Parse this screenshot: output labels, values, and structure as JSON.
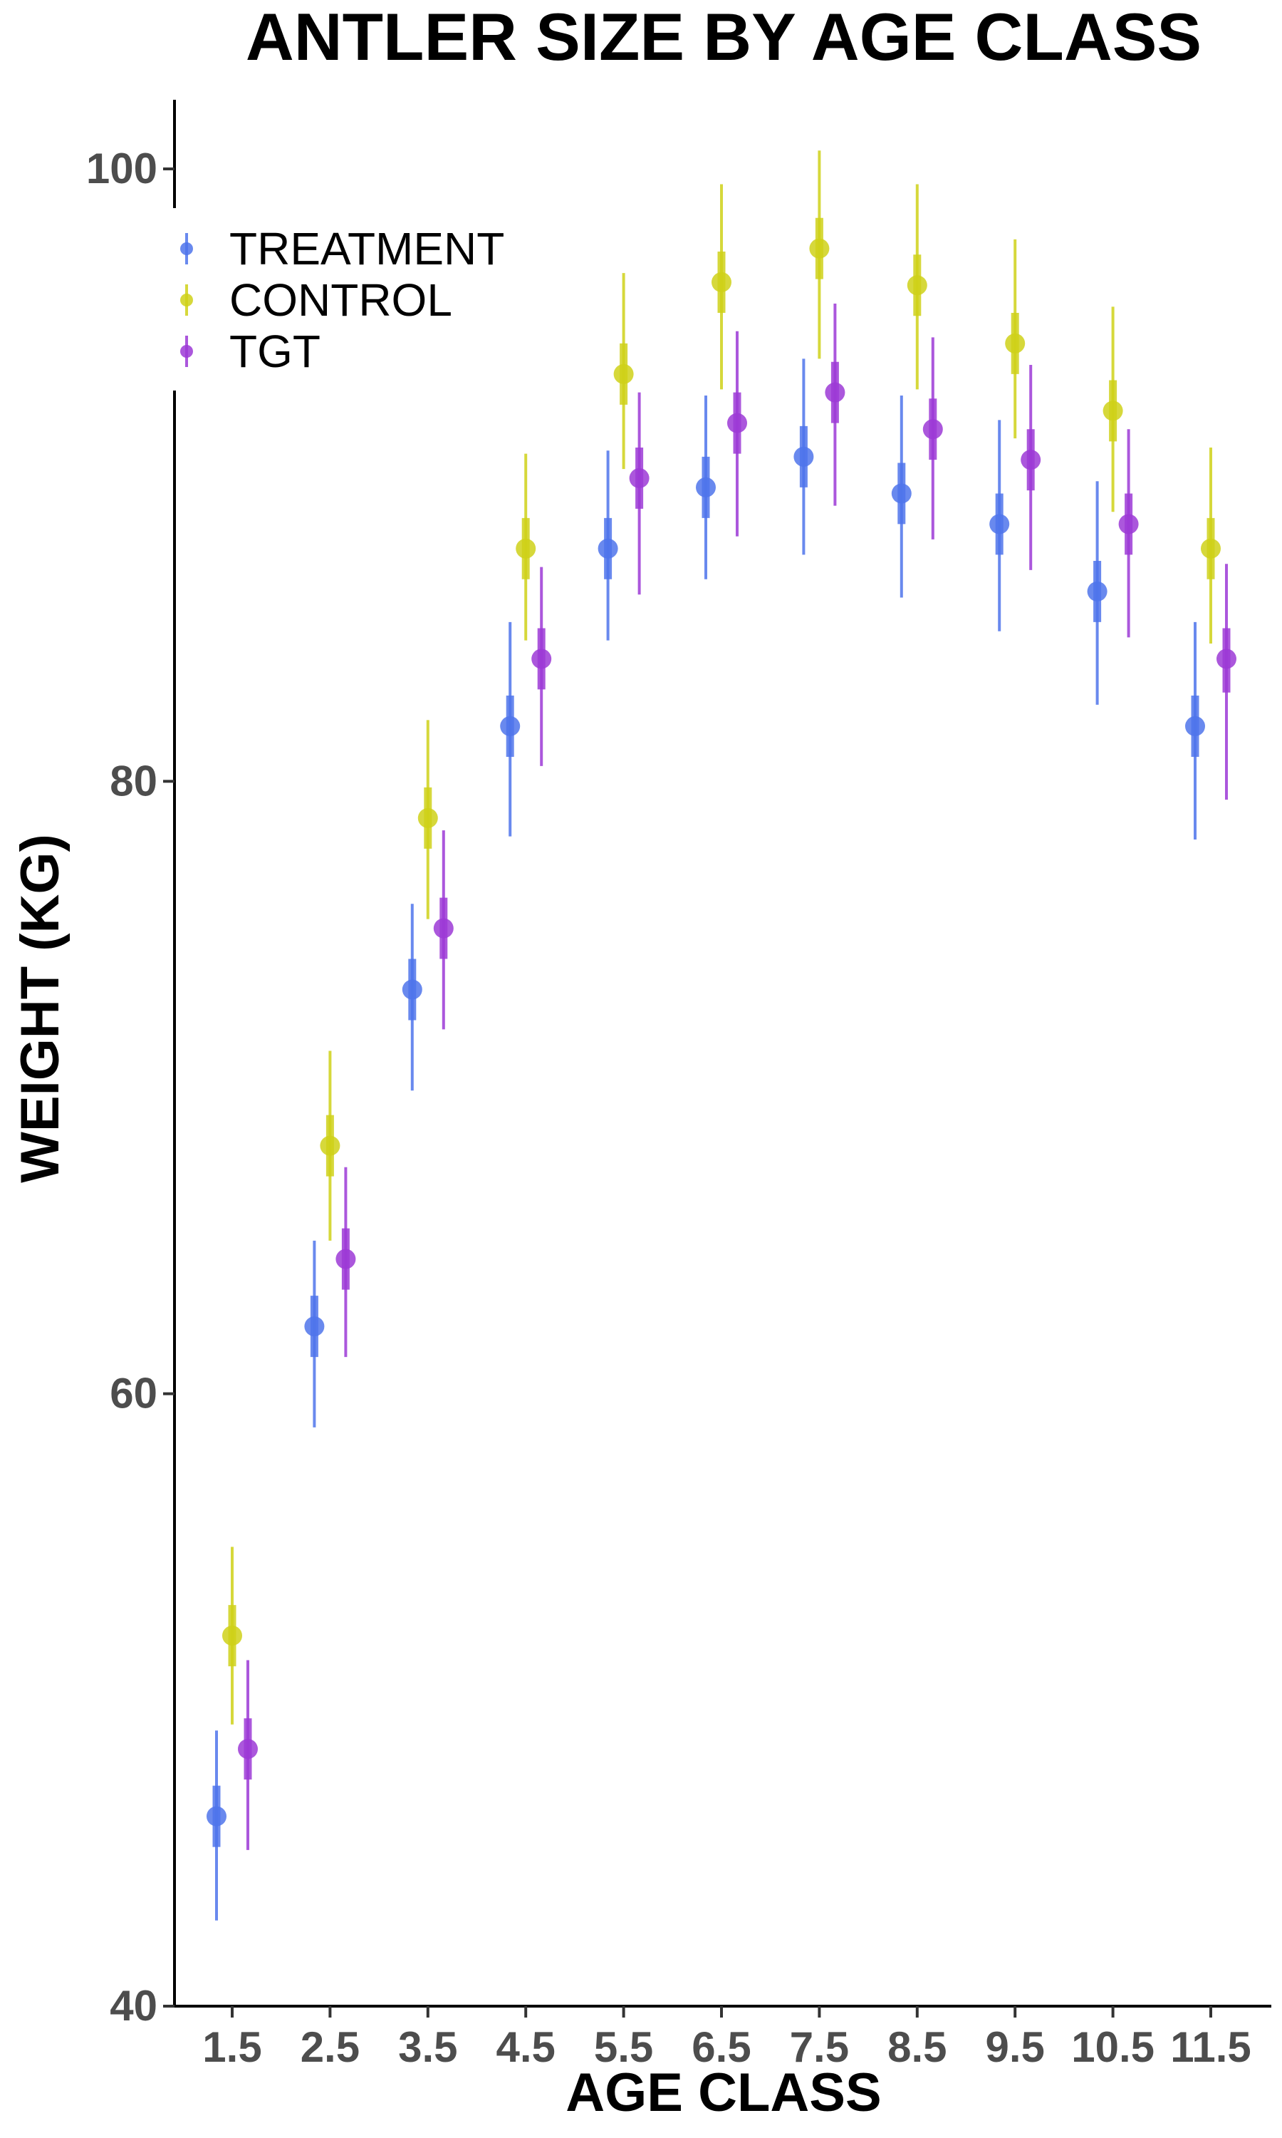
{
  "chart_data": {
    "type": "scatter",
    "title": "ANTLER SIZE BY AGE CLASS",
    "xlabel": "AGE CLASS",
    "ylabel": "WEIGHT (KG)",
    "categories": [
      "1.5",
      "2.5",
      "3.5",
      "4.5",
      "5.5",
      "6.5",
      "7.5",
      "8.5",
      "9.5",
      "10.5",
      "11.5"
    ],
    "ylim": [
      40,
      102.3
    ],
    "yticks": [
      40,
      60,
      80,
      100
    ],
    "ytick_labels": [
      "40",
      "60",
      "80",
      "100"
    ],
    "grid": false,
    "legend_position": "top-left",
    "series": [
      {
        "name": "TREATMENT",
        "color": "#4f74eb",
        "values": [
          46.2,
          62.2,
          73.2,
          81.8,
          87.6,
          89.6,
          90.6,
          89.4,
          88.4,
          86.2,
          81.8
        ],
        "inner": [
          [
            45.2,
            47.2
          ],
          [
            61.2,
            63.2
          ],
          [
            72.2,
            74.2
          ],
          [
            80.8,
            82.8
          ],
          [
            86.6,
            88.6
          ],
          [
            88.6,
            90.6
          ],
          [
            89.6,
            91.6
          ],
          [
            88.4,
            90.4
          ],
          [
            87.4,
            89.4
          ],
          [
            85.2,
            87.2
          ],
          [
            80.8,
            82.8
          ]
        ],
        "outer": [
          [
            42.8,
            49.0
          ],
          [
            58.9,
            65.0
          ],
          [
            69.9,
            76.0
          ],
          [
            78.2,
            85.2
          ],
          [
            84.6,
            90.8
          ],
          [
            86.6,
            92.6
          ],
          [
            87.4,
            93.8
          ],
          [
            86.0,
            92.6
          ],
          [
            84.9,
            91.8
          ],
          [
            82.5,
            89.8
          ],
          [
            78.1,
            85.2
          ]
        ]
      },
      {
        "name": "CONTROL",
        "color": "#cfd119",
        "values": [
          52.1,
          68.1,
          78.8,
          87.6,
          93.3,
          96.3,
          97.4,
          96.2,
          94.3,
          92.1,
          87.6
        ],
        "inner": [
          [
            51.1,
            53.1
          ],
          [
            67.1,
            69.1
          ],
          [
            77.8,
            79.8
          ],
          [
            86.6,
            88.6
          ],
          [
            92.3,
            94.3
          ],
          [
            95.3,
            97.3
          ],
          [
            96.4,
            98.4
          ],
          [
            95.2,
            97.2
          ],
          [
            93.3,
            95.3
          ],
          [
            91.1,
            93.1
          ],
          [
            86.6,
            88.6
          ]
        ],
        "outer": [
          [
            49.2,
            55.0
          ],
          [
            65.0,
            71.2
          ],
          [
            75.5,
            82.0
          ],
          [
            84.6,
            90.7
          ],
          [
            90.2,
            96.6
          ],
          [
            92.8,
            99.5
          ],
          [
            93.8,
            100.6
          ],
          [
            92.8,
            99.5
          ],
          [
            91.2,
            97.7
          ],
          [
            88.8,
            95.5
          ],
          [
            84.5,
            90.9
          ]
        ]
      },
      {
        "name": "TGT",
        "color": "#9c39d6",
        "values": [
          48.4,
          64.4,
          75.2,
          84.0,
          89.9,
          91.7,
          92.7,
          91.5,
          90.5,
          88.4,
          84.0
        ],
        "inner": [
          [
            47.4,
            49.4
          ],
          [
            63.4,
            65.4
          ],
          [
            74.2,
            76.2
          ],
          [
            83.0,
            85.0
          ],
          [
            88.9,
            90.9
          ],
          [
            90.7,
            92.7
          ],
          [
            91.7,
            93.7
          ],
          [
            90.5,
            92.5
          ],
          [
            89.5,
            91.5
          ],
          [
            87.4,
            89.4
          ],
          [
            82.9,
            85.0
          ]
        ],
        "outer": [
          [
            45.1,
            51.3
          ],
          [
            61.2,
            67.4
          ],
          [
            71.9,
            78.4
          ],
          [
            80.5,
            87.0
          ],
          [
            86.1,
            92.7
          ],
          [
            88.0,
            94.7
          ],
          [
            89.0,
            95.6
          ],
          [
            87.9,
            94.5
          ],
          [
            86.9,
            93.6
          ],
          [
            84.7,
            91.5
          ],
          [
            79.4,
            87.1
          ]
        ]
      }
    ]
  }
}
